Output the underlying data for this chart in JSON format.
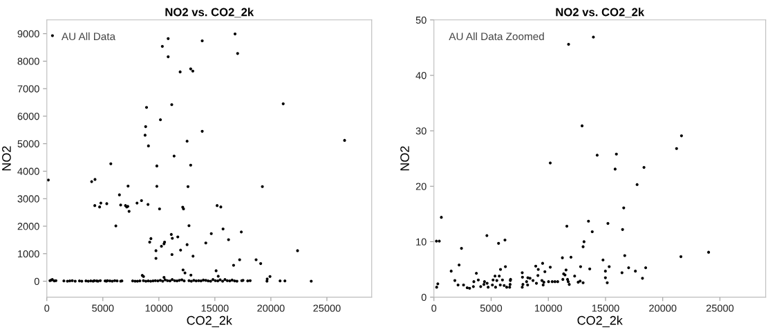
{
  "chart_data": [
    {
      "type": "scatter",
      "title": "NO2 vs. CO2_2k",
      "xlabel": "CO2_2k",
      "ylabel": "NO2",
      "annotations": [
        "AU All Data"
      ],
      "xlim": [
        0,
        29000
      ],
      "ylim": [
        -580,
        9500
      ],
      "xticks": [
        0,
        5000,
        10000,
        15000,
        20000,
        25000
      ],
      "yticks": [
        0,
        1000,
        2000,
        3000,
        4000,
        5000,
        6000,
        7000,
        8000,
        9000
      ],
      "grid": false,
      "legend": false,
      "marker": "circle",
      "series": [
        {
          "color": "#000000",
          "x": [
            500,
            10830,
            10310,
            13870,
            16800,
            17030,
            10830,
            11900,
            12840,
            13030,
            8900,
            11150,
            21100,
            10140,
            8820,
            8770,
            9070,
            13870,
            12520,
            26580,
            11360,
            5710,
            9820,
            12840,
            130,
            4000,
            4300,
            7250,
            9820,
            12600,
            19240,
            6480,
            4280,
            4820,
            4710,
            5350,
            6590,
            7020,
            7130,
            7230,
            7340,
            8050,
            8450,
            9030,
            10060,
            12130,
            12200,
            15200,
            15530,
            6160,
            12690,
            11110,
            11200,
            11690,
            9290,
            9180,
            10510,
            10460,
            10230,
            9740,
            9740,
            11940,
            12520,
            11170,
            13050,
            14680,
            14190,
            15730,
            16220,
            17360,
            17210,
            16670,
            18680,
            19090,
            22380,
            12160,
            12330,
            12860,
            15110,
            15300,
            8520,
            8630,
            10460,
            19670,
            19920,
            280,
            390,
            490,
            660,
            810,
            1520,
            1840,
            2050,
            2270,
            2530,
            2910,
            3120,
            3490,
            3700,
            3920,
            4130,
            4240,
            4450,
            4560,
            4770,
            5200,
            5310,
            5410,
            5630,
            5840,
            6060,
            6270,
            6590,
            6700,
            7660,
            7880,
            8090,
            8300,
            8620,
            8840,
            9050,
            9270,
            9480,
            9690,
            9910,
            10130,
            10340,
            10560,
            10770,
            10990,
            11190,
            11410,
            11620,
            11830,
            12050,
            12260,
            12690,
            12900,
            13120,
            13330,
            13550,
            13760,
            13970,
            14190,
            14400,
            14620,
            14830,
            15040,
            15260,
            15470,
            15690,
            15900,
            16110,
            16330,
            16540,
            16760,
            16970,
            17400,
            17510,
            17930,
            18150,
            19650,
            20820,
            21250,
            23600
          ],
          "values": [
            8930,
            8820,
            8540,
            8740,
            8990,
            8280,
            8160,
            7610,
            7720,
            7640,
            6320,
            6420,
            6450,
            5870,
            5620,
            5310,
            4920,
            5450,
            5090,
            5120,
            4550,
            4270,
            4190,
            4220,
            3680,
            3620,
            3700,
            3460,
            3450,
            3440,
            3440,
            3140,
            2750,
            2840,
            2700,
            2820,
            2770,
            2750,
            2700,
            2720,
            2540,
            2840,
            2930,
            2790,
            2630,
            2690,
            2630,
            2750,
            2700,
            2010,
            2020,
            1700,
            1560,
            1610,
            1550,
            1420,
            1420,
            1360,
            1270,
            1110,
            830,
            1130,
            1330,
            970,
            910,
            1730,
            1390,
            1900,
            1510,
            1790,
            780,
            580,
            780,
            640,
            1110,
            410,
            300,
            220,
            380,
            180,
            210,
            170,
            140,
            80,
            170,
            20,
            40,
            60,
            10,
            20,
            10,
            0,
            10,
            20,
            0,
            10,
            0,
            10,
            0,
            10,
            0,
            20,
            10,
            0,
            20,
            10,
            0,
            20,
            10,
            0,
            20,
            10,
            0,
            10,
            10,
            0,
            0,
            10,
            20,
            0,
            10,
            0,
            10,
            20,
            10,
            30,
            0,
            50,
            20,
            10,
            60,
            20,
            10,
            30,
            50,
            10,
            20,
            0,
            30,
            10,
            20,
            10,
            40,
            30,
            10,
            0,
            60,
            20,
            10,
            50,
            0,
            60,
            20,
            10,
            40,
            10,
            0,
            20,
            30,
            10,
            20,
            0,
            10,
            10,
            0
          ]
        }
      ]
    },
    {
      "type": "scatter",
      "title": "NO2 vs. CO2_2k",
      "xlabel": "CO2_2k",
      "ylabel": "NO2",
      "annotations": [
        "AU All Data Zoomed"
      ],
      "xlim": [
        0,
        29000
      ],
      "ylim": [
        0,
        50
      ],
      "xticks": [
        0,
        5000,
        10000,
        15000,
        20000,
        25000
      ],
      "yticks": [
        0,
        10,
        20,
        30,
        40,
        50
      ],
      "grid": false,
      "legend": false,
      "marker": "circle",
      "series": [
        {
          "color": "#000000",
          "x": [
            11770,
            13940,
            12950,
            14270,
            15950,
            21210,
            21640,
            10170,
            15840,
            18360,
            17760,
            16590,
            650,
            220,
            470,
            4630,
            5650,
            6210,
            2410,
            11620,
            13510,
            13840,
            15210,
            16490,
            13120,
            13040,
            11230,
            11980,
            16680,
            14780,
            21590,
            24010,
            1510,
            2200,
            5820,
            6250,
            8900,
            9120,
            9500,
            9700,
            10170,
            11550,
            12820,
            13620,
            15320,
            14990,
            14990,
            15150,
            16440,
            17020,
            17610,
            18510,
            18230,
            240,
            340,
            1830,
            2110,
            2590,
            2910,
            3120,
            3450,
            3490,
            3710,
            3880,
            4090,
            4370,
            4420,
            4650,
            4740,
            5110,
            5170,
            5340,
            5390,
            5500,
            5710,
            5800,
            5990,
            6140,
            6360,
            6620,
            6660,
            6680,
            6700,
            7720,
            7780,
            7720,
            7740,
            8100,
            8190,
            8210,
            8400,
            8660,
            8960,
            9090,
            9440,
            9550,
            9610,
            10020,
            10340,
            10580,
            10820,
            11270,
            11340,
            11460,
            11680,
            11740,
            11830,
            12300,
            12610,
            12780,
            13040
          ],
          "values": [
            45.6,
            46.9,
            30.9,
            25.6,
            25.8,
            26.8,
            29.1,
            24.2,
            23.1,
            23.4,
            20.3,
            16.1,
            14.4,
            10.1,
            10.1,
            11.1,
            9.7,
            10.3,
            8.8,
            12.8,
            13.7,
            11.8,
            13.3,
            12.2,
            10.0,
            9.1,
            7.1,
            7.2,
            7.5,
            6.7,
            7.3,
            8.1,
            4.7,
            5.8,
            5.0,
            5.5,
            5.6,
            5.0,
            6.1,
            4.6,
            5.4,
            4.9,
            5.5,
            5.1,
            5.5,
            4.7,
            3.5,
            2.6,
            4.4,
            5.3,
            4.7,
            5.3,
            3.4,
            1.8,
            2.4,
            3.0,
            2.2,
            2.2,
            1.7,
            1.6,
            1.9,
            2.8,
            4.3,
            3.1,
            1.9,
            2.3,
            2.8,
            2.5,
            1.8,
            2.2,
            3.1,
            3.8,
            1.8,
            3.0,
            3.8,
            2.2,
            3.1,
            2.1,
            1.8,
            1.8,
            2.3,
            3.0,
            3.2,
            1.8,
            2.3,
            4.4,
            3.6,
            2.8,
            2.2,
            3.5,
            3.4,
            3.0,
            2.5,
            3.9,
            3.0,
            2.2,
            2.7,
            2.8,
            2.8,
            2.8,
            2.8,
            3.2,
            4.2,
            4.0,
            3.2,
            2.8,
            2.3,
            3.8,
            2.7,
            2.9,
            2.6
          ]
        }
      ]
    }
  ]
}
